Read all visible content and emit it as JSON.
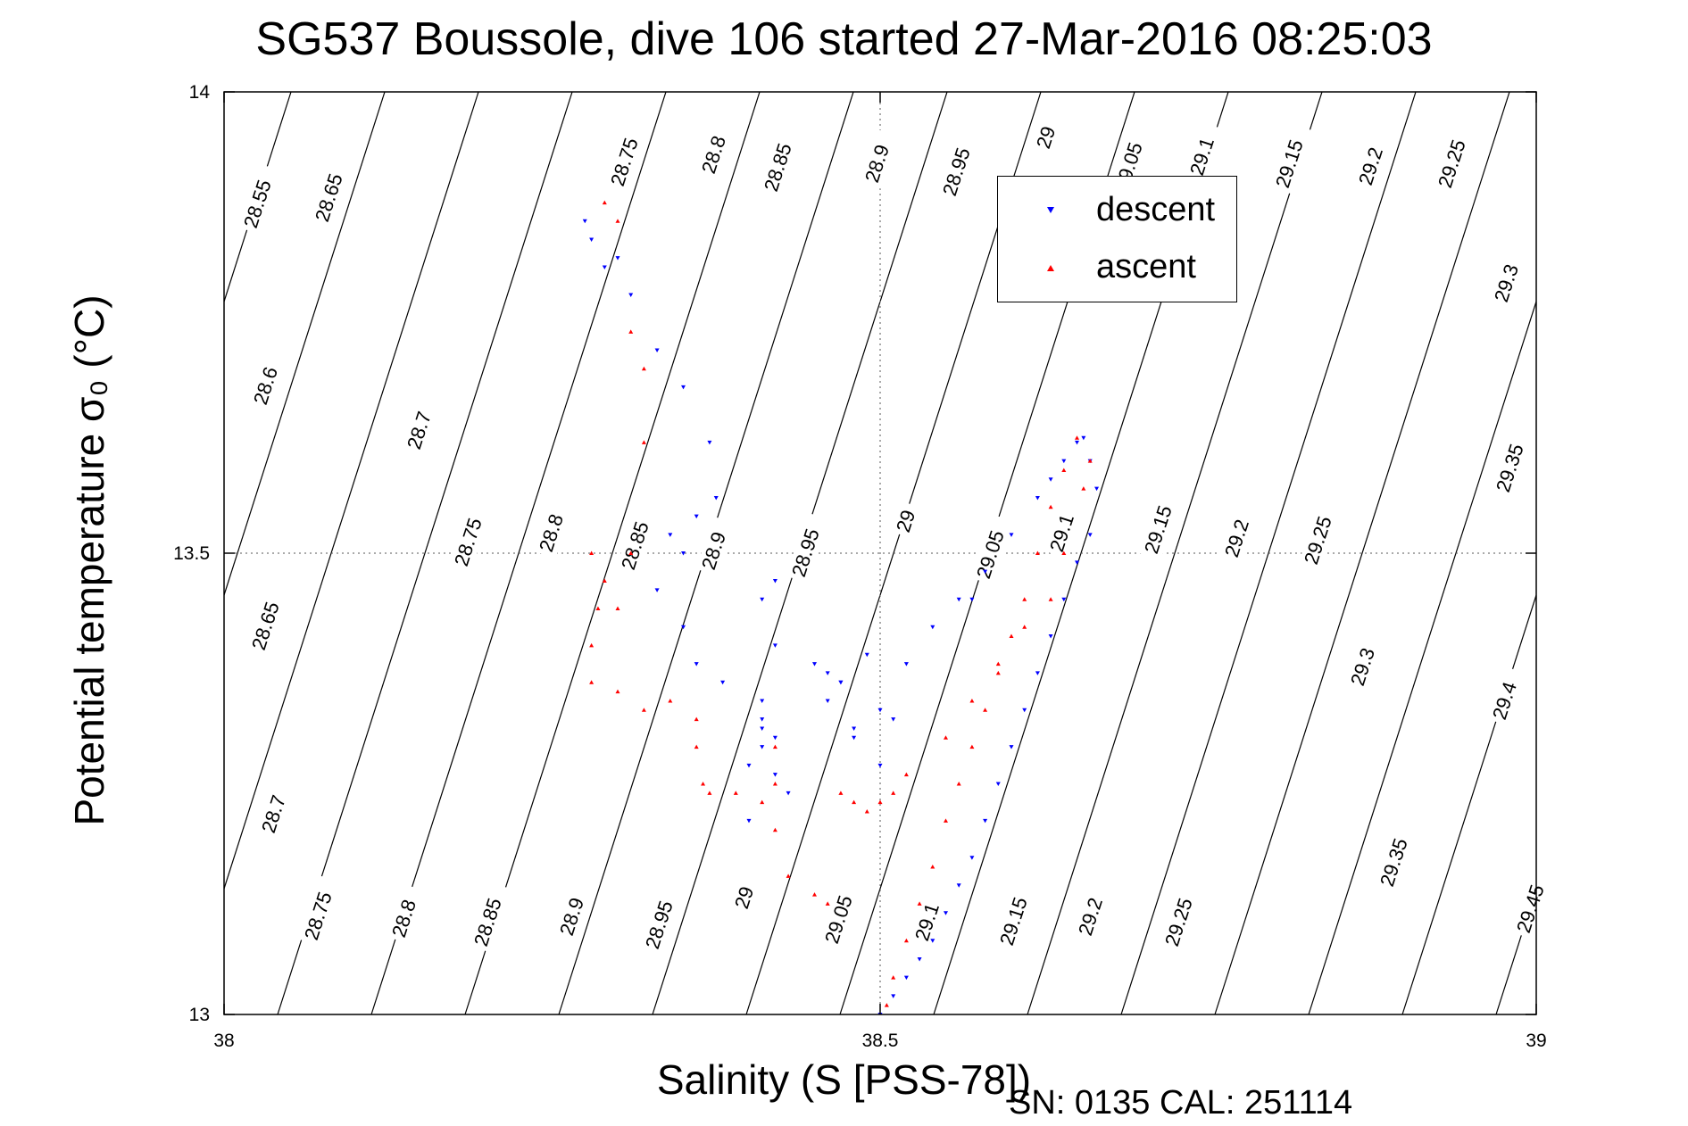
{
  "title": "SG537 Boussole, dive 106 started 27-Mar-2016 08:25:03",
  "footer": "SN: 0135  CAL: 251114",
  "chart_data": {
    "type": "scatter",
    "title": "SG537 Boussole, dive 106 started 27-Mar-2016 08:25:03",
    "xlabel": "Salinity (S [PSS-78])",
    "ylabel": "Potential temperature σ₀ (°C)",
    "xlim": [
      38,
      39
    ],
    "ylim": [
      13,
      14
    ],
    "xticks": [
      "38",
      "38.5",
      "39"
    ],
    "yticks": [
      "13",
      "13.5",
      "14"
    ],
    "grid": "dotted at x=38.5 and y=13.5",
    "legend": {
      "position": "top-right",
      "entries": [
        "descent",
        "ascent"
      ]
    },
    "colors": {
      "descent": "#0000ff",
      "ascent": "#ff0000",
      "contours": "#000000"
    },
    "contour_labels": {
      "top": [
        "28.55",
        "28.65",
        "28.75",
        "28.8",
        "28.85",
        "28.9",
        "28.95",
        "29",
        "29.05",
        "29.1",
        "29.15",
        "29.2",
        "29.25"
      ],
      "upper_left": [
        "28.6",
        "28.7"
      ],
      "middle": [
        "28.65",
        "28.75",
        "28.8",
        "28.85",
        "28.9",
        "28.95",
        "29",
        "29.05",
        "29.1",
        "29.15",
        "29.2",
        "29.25"
      ],
      "right": [
        "29.3",
        "29.35",
        "29.3",
        "29.4"
      ],
      "lower": [
        "28.7",
        "28.75",
        "28.8",
        "28.85",
        "28.9",
        "28.95",
        "29",
        "29.05",
        "29.1",
        "29.15",
        "29.2",
        "29.25",
        "29.35",
        "29.45"
      ]
    },
    "series": [
      {
        "name": "descent",
        "marker": "triangle-down",
        "x": [
          38.275,
          38.28,
          38.29,
          38.3,
          38.31,
          38.33,
          38.35,
          38.37,
          38.375,
          38.36,
          38.34,
          38.35,
          38.33,
          38.35,
          38.36,
          38.38,
          38.41,
          38.42,
          38.41,
          38.41,
          38.41,
          38.4,
          38.42,
          38.43,
          38.4,
          38.42,
          38.41,
          38.42,
          38.45,
          38.46,
          38.47,
          38.48,
          38.5,
          38.48,
          38.46,
          38.47,
          38.49,
          38.5,
          38.51,
          38.52,
          38.54,
          38.56,
          38.57,
          38.58,
          38.6,
          38.62,
          38.63,
          38.64,
          38.65,
          38.655,
          38.66,
          38.665,
          38.66,
          38.65,
          38.64,
          38.63,
          38.62,
          38.61,
          38.6,
          38.59,
          38.58,
          38.57,
          38.56,
          38.55,
          38.54,
          38.53,
          38.52,
          38.51,
          38.5
        ],
        "y": [
          13.86,
          13.84,
          13.81,
          13.82,
          13.78,
          13.72,
          13.68,
          13.62,
          13.56,
          13.54,
          13.52,
          13.5,
          13.46,
          13.42,
          13.38,
          13.36,
          13.34,
          13.3,
          13.32,
          13.31,
          13.29,
          13.27,
          13.26,
          13.24,
          13.21,
          13.4,
          13.45,
          13.47,
          13.38,
          13.37,
          13.36,
          13.31,
          13.27,
          13.3,
          13.34,
          13.36,
          13.39,
          13.33,
          13.32,
          13.38,
          13.42,
          13.45,
          13.45,
          13.48,
          13.52,
          13.56,
          13.58,
          13.6,
          13.62,
          13.625,
          13.6,
          13.57,
          13.52,
          13.49,
          13.45,
          13.41,
          13.37,
          13.33,
          13.29,
          13.25,
          13.21,
          13.17,
          13.14,
          13.11,
          13.08,
          13.06,
          13.04,
          13.02,
          13.0
        ]
      },
      {
        "name": "ascent",
        "marker": "triangle-up",
        "x": [
          38.29,
          38.3,
          38.31,
          38.32,
          38.32,
          38.31,
          38.3,
          38.28,
          38.29,
          38.285,
          38.28,
          38.28,
          38.3,
          38.32,
          38.34,
          38.36,
          38.36,
          38.365,
          38.37,
          38.39,
          38.41,
          38.42,
          38.42,
          38.42,
          38.43,
          38.45,
          38.46,
          38.47,
          38.48,
          38.49,
          38.5,
          38.51,
          38.52,
          38.55,
          38.57,
          38.59,
          38.61,
          38.63,
          38.64,
          38.655,
          38.66,
          38.65,
          38.64,
          38.63,
          38.62,
          38.61,
          38.6,
          38.59,
          38.58,
          38.57,
          38.56,
          38.55,
          38.54,
          38.53,
          38.52,
          38.51,
          38.505
        ],
        "y": [
          13.88,
          13.86,
          13.74,
          13.7,
          13.62,
          13.5,
          13.44,
          13.5,
          13.47,
          13.44,
          13.4,
          13.36,
          13.35,
          13.33,
          13.34,
          13.32,
          13.29,
          13.25,
          13.24,
          13.24,
          13.23,
          13.25,
          13.29,
          13.2,
          13.15,
          13.13,
          13.12,
          13.24,
          13.23,
          13.22,
          13.23,
          13.24,
          13.26,
          13.3,
          13.34,
          13.38,
          13.42,
          13.45,
          13.5,
          13.57,
          13.6,
          13.625,
          13.59,
          13.55,
          13.5,
          13.45,
          13.41,
          13.37,
          13.33,
          13.29,
          13.25,
          13.21,
          13.16,
          13.12,
          13.08,
          13.04,
          13.01
        ]
      }
    ]
  }
}
